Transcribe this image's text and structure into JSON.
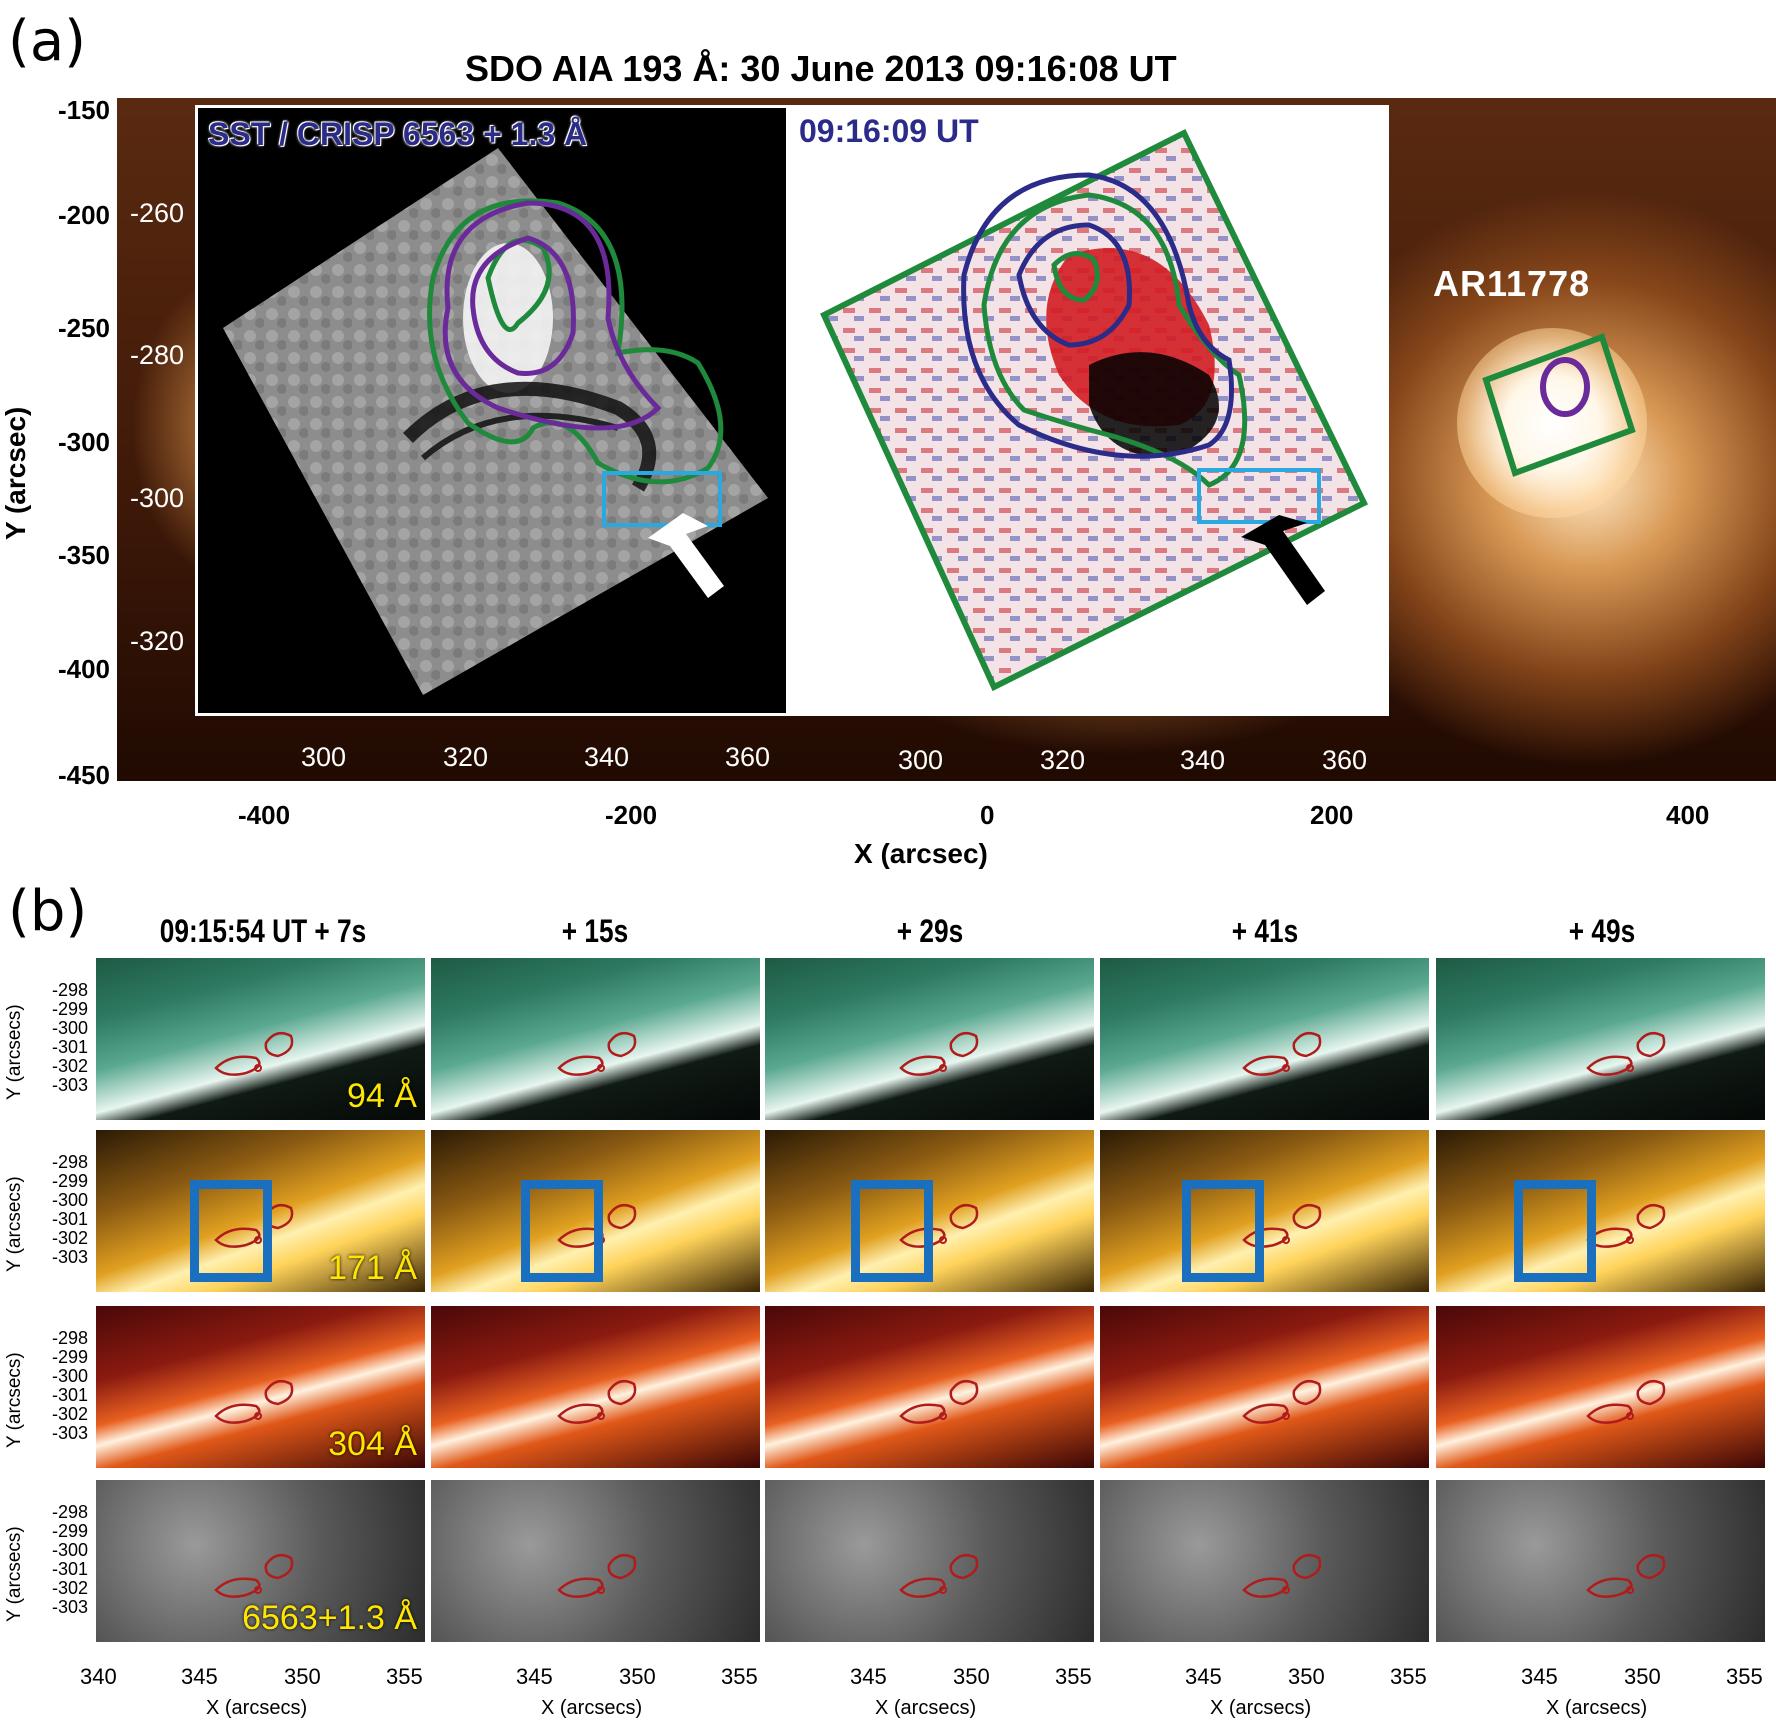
{
  "panel_a": {
    "label": "(a)",
    "title": "SDO AIA 193 Å: 30 June 2013 09:16:08 UT",
    "y_ticks": [
      "-150",
      "-200",
      "-250",
      "-300",
      "-350",
      "-400",
      "-450"
    ],
    "x_ticks": [
      "-400",
      "-200",
      "0",
      "200",
      "400"
    ],
    "xlabel": "X (arcsec)",
    "ylabel": "Y (arcsec)",
    "inset_left_label": "SST / CRISP 6563 + 1.3 Å",
    "inset_right_label": "09:16:09 UT",
    "inset_y_ticks": [
      "-260",
      "-280",
      "-300",
      "-320"
    ],
    "inset_x_ticks_left": [
      "300",
      "320",
      "340",
      "360"
    ],
    "inset_x_ticks_right": [
      "300",
      "320",
      "340",
      "360"
    ],
    "region_label": "AR11778"
  },
  "panel_b": {
    "label": "(b)",
    "columns": [
      "09:15:54 UT + 7s",
      "+ 15s",
      "+ 29s",
      "+ 41s",
      "+ 49s"
    ],
    "rows": [
      {
        "wavelength": "94 Å",
        "colormap": "green"
      },
      {
        "wavelength": "171 Å",
        "colormap": "gold"
      },
      {
        "wavelength": "304 Å",
        "colormap": "red"
      },
      {
        "wavelength": "6563+1.3 Å",
        "colormap": "gray"
      }
    ],
    "y_ticks": [
      "-298",
      "-299",
      "-300",
      "-301",
      "-302",
      "-303"
    ],
    "ylabel": "Y (arcsecs)",
    "x_ticks": [
      "340",
      "345",
      "350",
      "355"
    ],
    "x_ticks_other": [
      "345",
      "350",
      "355"
    ],
    "xlabel": "X (arcsecs)"
  },
  "colors": {
    "contour_green": "#1f8a3c",
    "contour_purple": "#6a2a9a",
    "contour_navy": "#2b2b8a",
    "box_cyan": "#2aa8e0",
    "box_blue": "#1a6fbf",
    "contour_red": "#b01c1c"
  }
}
